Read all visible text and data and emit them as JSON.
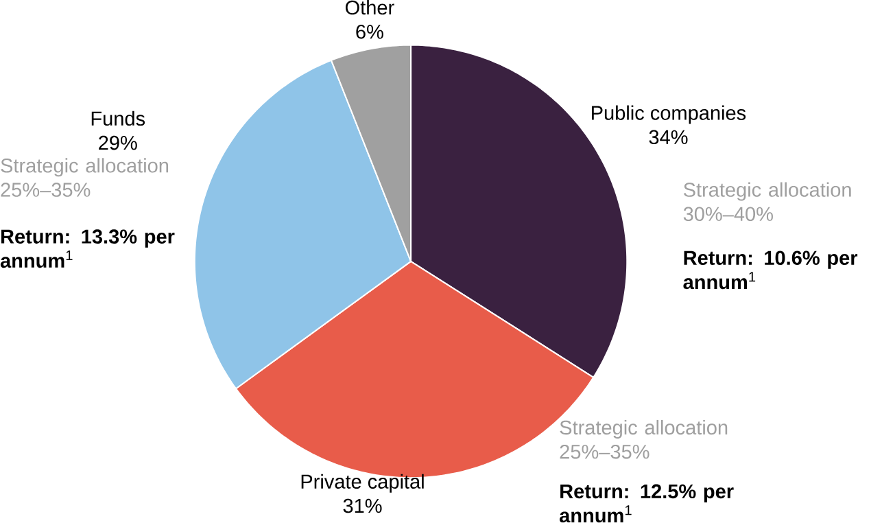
{
  "chart_data": {
    "type": "pie",
    "categories": [
      "Public companies",
      "Private capital",
      "Funds",
      "Other"
    ],
    "values": [
      34,
      31,
      29,
      6
    ],
    "value_labels": [
      "34%",
      "31%",
      "29%",
      "6%"
    ],
    "colors": [
      "#3a2140",
      "#e85c4a",
      "#8fc4e8",
      "#a0a0a0"
    ],
    "annotations": [
      "Strategic allocation 30%–40%",
      "**Return: 10.6% per annum**$^{1}$",
      "Strategic allocation 25%–35%",
      "**Return: 12.5% per annum**$^{1}$",
      "Strategic allocation 25%–35%",
      "**Return: 13.3% per annum**$^{1}$"
    ]
  }
}
